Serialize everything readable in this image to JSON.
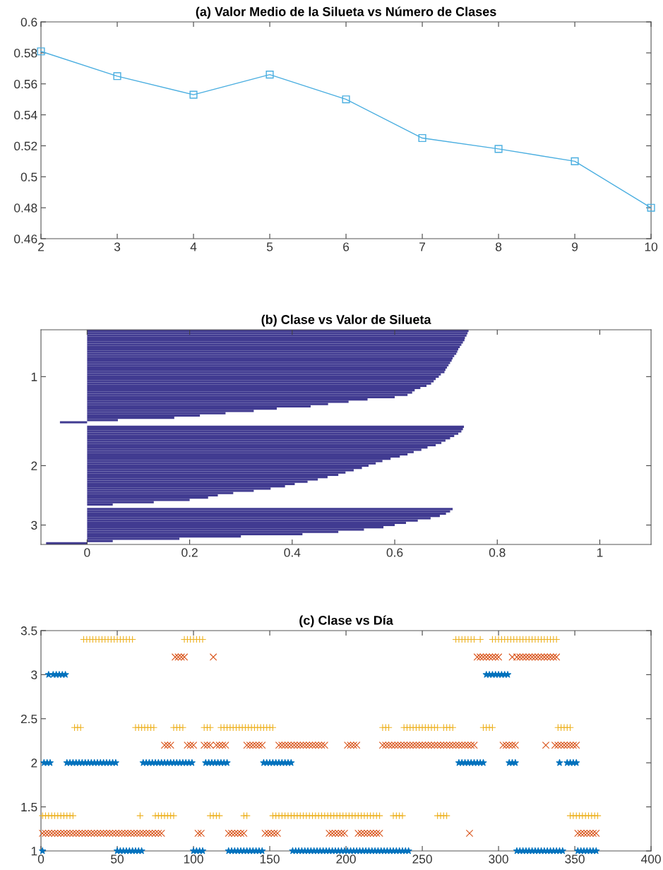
{
  "chart_data": [
    {
      "type": "line",
      "title": "(a) Valor Medio de la Silueta vs Número de Clases",
      "x": [
        2,
        3,
        4,
        5,
        6,
        7,
        8,
        9,
        10
      ],
      "values": [
        0.581,
        0.565,
        0.553,
        0.566,
        0.55,
        0.525,
        0.518,
        0.51,
        0.48
      ],
      "color": "#4aaee0",
      "marker": "square",
      "line_style": "solid",
      "xlim": [
        2,
        10
      ],
      "xticks": [
        2,
        3,
        4,
        5,
        6,
        7,
        8,
        9,
        10
      ],
      "ylim": [
        0.46,
        0.6
      ],
      "yticks": [
        0.46,
        0.48,
        0.5,
        0.52,
        0.54,
        0.56,
        0.58,
        0.6
      ]
    },
    {
      "type": "bar",
      "orientation": "horizontal",
      "title": "(b) Clase vs Valor de Silueta",
      "color": "#413b91",
      "categories": [
        null,
        null,
        null,
        null,
        null,
        null,
        null,
        null,
        null,
        null,
        null,
        null,
        null,
        null,
        null,
        null,
        null,
        null,
        null,
        null,
        "1",
        null,
        null,
        null,
        null,
        null,
        null,
        null,
        null,
        null,
        null,
        null,
        null,
        null,
        null,
        null,
        null,
        null,
        null,
        null,
        null,
        null,
        null,
        null,
        null,
        null,
        null,
        null,
        null,
        null,
        null,
        null,
        null,
        null,
        null,
        null,
        null,
        null,
        null,
        "2",
        null,
        null,
        null,
        null,
        null,
        null,
        null,
        null,
        null,
        null,
        null,
        null,
        null,
        null,
        null,
        null,
        null,
        null,
        null,
        null,
        null,
        null,
        null,
        null,
        null,
        "3",
        null,
        null,
        null,
        null,
        null,
        null,
        null,
        null
      ],
      "values": [
        0.744,
        0.742,
        0.74,
        0.737,
        0.736,
        0.733,
        0.73,
        0.727,
        0.724,
        0.722,
        0.72,
        0.716,
        0.713,
        0.711,
        0.708,
        0.705,
        0.702,
        0.699,
        0.697,
        0.69,
        0.686,
        0.68,
        0.676,
        0.671,
        0.662,
        0.65,
        0.639,
        0.634,
        0.625,
        0.6,
        0.547,
        0.51,
        0.47,
        0.436,
        0.37,
        0.325,
        0.27,
        0.22,
        0.17,
        0.06,
        -0.053,
        null,
        0.735,
        0.733,
        0.73,
        0.724,
        0.716,
        0.708,
        0.699,
        0.691,
        0.68,
        0.664,
        0.652,
        0.637,
        0.625,
        0.61,
        0.592,
        0.576,
        0.563,
        0.549,
        0.536,
        0.52,
        0.504,
        0.49,
        0.469,
        0.45,
        0.43,
        0.405,
        0.386,
        0.358,
        0.325,
        0.285,
        0.255,
        0.236,
        0.2,
        0.13,
        0.05,
        null,
        0.713,
        0.708,
        0.7,
        0.688,
        0.67,
        0.645,
        0.622,
        0.6,
        0.578,
        0.54,
        0.49,
        0.42,
        0.3,
        0.18,
        0.05,
        -0.08
      ],
      "xlim": [
        -0.09,
        1.1
      ],
      "xticks": [
        0,
        0.2,
        0.4,
        0.6,
        0.8,
        1
      ]
    },
    {
      "type": "scatter",
      "title": "(c) Clase vs Día",
      "xlim": [
        0,
        400
      ],
      "xticks": [
        0,
        50,
        100,
        150,
        200,
        250,
        300,
        350,
        400
      ],
      "ylim": [
        1,
        3.5
      ],
      "yticks": [
        1,
        1.5,
        2,
        2.5,
        3,
        3.5
      ],
      "series": [
        {
          "color": "#0072bd",
          "marker": "star",
          "x": [
            1,
            50,
            52,
            54,
            56,
            58,
            60,
            62,
            64,
            66,
            100,
            102,
            104,
            106,
            123,
            125,
            127,
            129,
            131,
            133,
            135,
            137,
            139,
            141,
            143,
            145,
            165,
            167,
            169,
            171,
            173,
            175,
            177,
            179,
            181,
            183,
            185,
            187,
            189,
            191,
            193,
            195,
            197,
            199,
            201,
            203,
            205,
            207,
            209,
            211,
            213,
            215,
            217,
            219,
            221,
            223,
            225,
            227,
            229,
            231,
            233,
            235,
            237,
            239,
            241,
            312,
            314,
            316,
            318,
            320,
            322,
            324,
            326,
            328,
            330,
            332,
            334,
            336,
            338,
            340,
            342,
            352,
            354,
            356,
            358,
            360,
            362,
            364
          ],
          "values": [
            1,
            1,
            1,
            1,
            1,
            1,
            1,
            1,
            1,
            1,
            1,
            1,
            1,
            1,
            1,
            1,
            1,
            1,
            1,
            1,
            1,
            1,
            1,
            1,
            1,
            1,
            1,
            1,
            1,
            1,
            1,
            1,
            1,
            1,
            1,
            1,
            1,
            1,
            1,
            1,
            1,
            1,
            1,
            1,
            1,
            1,
            1,
            1,
            1,
            1,
            1,
            1,
            1,
            1,
            1,
            1,
            1,
            1,
            1,
            1,
            1,
            1,
            1,
            1,
            1,
            1,
            1,
            1,
            1,
            1,
            1,
            1,
            1,
            1,
            1,
            1,
            1,
            1,
            1,
            1,
            1,
            1,
            1,
            1,
            1,
            1,
            1,
            1
          ]
        },
        {
          "color": "#0072bd",
          "marker": "star",
          "x": [
            2,
            4,
            6,
            17,
            19,
            21,
            23,
            25,
            27,
            29,
            31,
            33,
            35,
            37,
            39,
            41,
            43,
            45,
            47,
            49,
            67,
            69,
            71,
            73,
            75,
            77,
            79,
            81,
            83,
            85,
            87,
            89,
            91,
            93,
            95,
            97,
            99,
            108,
            110,
            112,
            114,
            116,
            118,
            120,
            122,
            146,
            148,
            150,
            152,
            154,
            156,
            158,
            160,
            162,
            164,
            274,
            276,
            278,
            280,
            282,
            284,
            286,
            288,
            290,
            307,
            309,
            311,
            340,
            345,
            347,
            349,
            351
          ],
          "values": [
            2,
            2,
            2,
            2,
            2,
            2,
            2,
            2,
            2,
            2,
            2,
            2,
            2,
            2,
            2,
            2,
            2,
            2,
            2,
            2,
            2,
            2,
            2,
            2,
            2,
            2,
            2,
            2,
            2,
            2,
            2,
            2,
            2,
            2,
            2,
            2,
            2,
            2,
            2,
            2,
            2,
            2,
            2,
            2,
            2,
            2,
            2,
            2,
            2,
            2,
            2,
            2,
            2,
            2,
            2,
            2,
            2,
            2,
            2,
            2,
            2,
            2,
            2,
            2,
            2,
            2,
            2,
            2,
            2,
            2,
            2,
            2
          ]
        },
        {
          "color": "#0072bd",
          "marker": "star",
          "x": [
            5,
            8,
            10,
            12,
            14,
            16,
            292,
            294,
            296,
            298,
            300,
            302,
            304,
            306
          ],
          "values": [
            3,
            3,
            3,
            3,
            3,
            3,
            3,
            3,
            3,
            3,
            3,
            3,
            3,
            3
          ]
        },
        {
          "color": "#d95319",
          "marker": "cross",
          "x": [
            1,
            3,
            5,
            7,
            9,
            11,
            13,
            15,
            17,
            19,
            21,
            23,
            25,
            27,
            29,
            31,
            33,
            35,
            37,
            39,
            41,
            43,
            45,
            47,
            49,
            51,
            53,
            55,
            57,
            59,
            61,
            63,
            65,
            67,
            69,
            71,
            73,
            75,
            77,
            79,
            103,
            105,
            123,
            125,
            127,
            129,
            131,
            133,
            147,
            149,
            151,
            153,
            155,
            189,
            191,
            193,
            195,
            197,
            199,
            208,
            210,
            212,
            214,
            216,
            218,
            220,
            222,
            281,
            352,
            354,
            356,
            358,
            360,
            362,
            364
          ],
          "values": [
            1.2,
            1.2,
            1.2,
            1.2,
            1.2,
            1.2,
            1.2,
            1.2,
            1.2,
            1.2,
            1.2,
            1.2,
            1.2,
            1.2,
            1.2,
            1.2,
            1.2,
            1.2,
            1.2,
            1.2,
            1.2,
            1.2,
            1.2,
            1.2,
            1.2,
            1.2,
            1.2,
            1.2,
            1.2,
            1.2,
            1.2,
            1.2,
            1.2,
            1.2,
            1.2,
            1.2,
            1.2,
            1.2,
            1.2,
            1.2,
            1.2,
            1.2,
            1.2,
            1.2,
            1.2,
            1.2,
            1.2,
            1.2,
            1.2,
            1.2,
            1.2,
            1.2,
            1.2,
            1.2,
            1.2,
            1.2,
            1.2,
            1.2,
            1.2,
            1.2,
            1.2,
            1.2,
            1.2,
            1.2,
            1.2,
            1.2,
            1.2,
            1.2,
            1.2,
            1.2,
            1.2,
            1.2,
            1.2,
            1.2,
            1.2
          ]
        },
        {
          "color": "#d95319",
          "marker": "cross",
          "x": [
            81,
            83,
            85,
            96,
            98,
            100,
            107,
            109,
            111,
            115,
            117,
            119,
            121,
            135,
            137,
            139,
            141,
            143,
            145,
            156,
            158,
            160,
            162,
            164,
            166,
            168,
            170,
            172,
            174,
            176,
            178,
            180,
            182,
            184,
            186,
            201,
            203,
            205,
            207,
            224,
            226,
            228,
            230,
            232,
            234,
            236,
            238,
            240,
            242,
            244,
            246,
            248,
            250,
            252,
            254,
            256,
            258,
            260,
            262,
            264,
            266,
            268,
            270,
            272,
            274,
            276,
            278,
            280,
            282,
            284,
            303,
            305,
            307,
            309,
            311,
            331,
            337,
            339,
            341,
            343,
            345,
            347,
            349,
            351
          ],
          "values": [
            2.2,
            2.2,
            2.2,
            2.2,
            2.2,
            2.2,
            2.2,
            2.2,
            2.2,
            2.2,
            2.2,
            2.2,
            2.2,
            2.2,
            2.2,
            2.2,
            2.2,
            2.2,
            2.2,
            2.2,
            2.2,
            2.2,
            2.2,
            2.2,
            2.2,
            2.2,
            2.2,
            2.2,
            2.2,
            2.2,
            2.2,
            2.2,
            2.2,
            2.2,
            2.2,
            2.2,
            2.2,
            2.2,
            2.2,
            2.2,
            2.2,
            2.2,
            2.2,
            2.2,
            2.2,
            2.2,
            2.2,
            2.2,
            2.2,
            2.2,
            2.2,
            2.2,
            2.2,
            2.2,
            2.2,
            2.2,
            2.2,
            2.2,
            2.2,
            2.2,
            2.2,
            2.2,
            2.2,
            2.2,
            2.2,
            2.2,
            2.2,
            2.2,
            2.2,
            2.2,
            2.2,
            2.2,
            2.2,
            2.2,
            2.2,
            2.2,
            2.2,
            2.2,
            2.2,
            2.2,
            2.2,
            2.2,
            2.2,
            2.2
          ]
        },
        {
          "color": "#d95319",
          "marker": "cross",
          "x": [
            88,
            90,
            92,
            94,
            113,
            286,
            288,
            290,
            292,
            294,
            296,
            298,
            300,
            309,
            312,
            314,
            316,
            318,
            320,
            322,
            324,
            326,
            328,
            330,
            332,
            334,
            336,
            338
          ],
          "values": [
            3.2,
            3.2,
            3.2,
            3.2,
            3.2,
            3.2,
            3.2,
            3.2,
            3.2,
            3.2,
            3.2,
            3.2,
            3.2,
            3.2,
            3.2,
            3.2,
            3.2,
            3.2,
            3.2,
            3.2,
            3.2,
            3.2,
            3.2,
            3.2,
            3.2,
            3.2,
            3.2,
            3.2
          ]
        },
        {
          "color": "#edb120",
          "marker": "plus",
          "x": [
            1,
            3,
            5,
            7,
            9,
            11,
            13,
            15,
            17,
            19,
            21,
            65,
            75,
            77,
            79,
            81,
            83,
            85,
            87,
            111,
            113,
            115,
            117,
            133,
            135,
            152,
            154,
            156,
            158,
            160,
            162,
            164,
            166,
            168,
            170,
            172,
            174,
            176,
            178,
            180,
            182,
            184,
            186,
            188,
            190,
            192,
            194,
            196,
            198,
            200,
            202,
            204,
            206,
            208,
            210,
            212,
            214,
            216,
            218,
            220,
            222,
            231,
            233,
            235,
            237,
            260,
            262,
            264,
            266,
            347,
            349,
            351,
            353,
            355,
            357,
            359,
            361,
            363,
            365
          ],
          "values": [
            1.4,
            1.4,
            1.4,
            1.4,
            1.4,
            1.4,
            1.4,
            1.4,
            1.4,
            1.4,
            1.4,
            1.4,
            1.4,
            1.4,
            1.4,
            1.4,
            1.4,
            1.4,
            1.4,
            1.4,
            1.4,
            1.4,
            1.4,
            1.4,
            1.4,
            1.4,
            1.4,
            1.4,
            1.4,
            1.4,
            1.4,
            1.4,
            1.4,
            1.4,
            1.4,
            1.4,
            1.4,
            1.4,
            1.4,
            1.4,
            1.4,
            1.4,
            1.4,
            1.4,
            1.4,
            1.4,
            1.4,
            1.4,
            1.4,
            1.4,
            1.4,
            1.4,
            1.4,
            1.4,
            1.4,
            1.4,
            1.4,
            1.4,
            1.4,
            1.4,
            1.4,
            1.4,
            1.4,
            1.4,
            1.4,
            1.4,
            1.4,
            1.4,
            1.4,
            1.4,
            1.4,
            1.4,
            1.4,
            1.4,
            1.4,
            1.4,
            1.4,
            1.4,
            1.4
          ]
        },
        {
          "color": "#edb120",
          "marker": "plus",
          "x": [
            22,
            24,
            26,
            62,
            64,
            66,
            68,
            70,
            72,
            74,
            87,
            89,
            91,
            93,
            107,
            109,
            111,
            118,
            120,
            122,
            124,
            126,
            128,
            130,
            132,
            134,
            136,
            138,
            140,
            142,
            144,
            146,
            148,
            150,
            152,
            224,
            226,
            228,
            238,
            240,
            242,
            244,
            246,
            248,
            250,
            252,
            254,
            256,
            258,
            260,
            264,
            266,
            268,
            270,
            290,
            292,
            294,
            296,
            339,
            341,
            343,
            345,
            347
          ],
          "values": [
            2.4,
            2.4,
            2.4,
            2.4,
            2.4,
            2.4,
            2.4,
            2.4,
            2.4,
            2.4,
            2.4,
            2.4,
            2.4,
            2.4,
            2.4,
            2.4,
            2.4,
            2.4,
            2.4,
            2.4,
            2.4,
            2.4,
            2.4,
            2.4,
            2.4,
            2.4,
            2.4,
            2.4,
            2.4,
            2.4,
            2.4,
            2.4,
            2.4,
            2.4,
            2.4,
            2.4,
            2.4,
            2.4,
            2.4,
            2.4,
            2.4,
            2.4,
            2.4,
            2.4,
            2.4,
            2.4,
            2.4,
            2.4,
            2.4,
            2.4,
            2.4,
            2.4,
            2.4,
            2.4,
            2.4,
            2.4,
            2.4,
            2.4,
            2.4,
            2.4,
            2.4,
            2.4,
            2.4
          ]
        },
        {
          "color": "#edb120",
          "marker": "plus",
          "x": [
            28,
            30,
            32,
            34,
            36,
            38,
            40,
            42,
            44,
            46,
            48,
            50,
            52,
            54,
            56,
            58,
            60,
            94,
            96,
            98,
            100,
            102,
            104,
            106,
            272,
            274,
            276,
            278,
            280,
            282,
            284,
            288,
            296,
            298,
            300,
            302,
            304,
            306,
            308,
            310,
            312,
            314,
            316,
            318,
            320,
            322,
            324,
            326,
            328,
            330,
            332,
            334,
            336,
            338
          ],
          "values": [
            3.4,
            3.4,
            3.4,
            3.4,
            3.4,
            3.4,
            3.4,
            3.4,
            3.4,
            3.4,
            3.4,
            3.4,
            3.4,
            3.4,
            3.4,
            3.4,
            3.4,
            3.4,
            3.4,
            3.4,
            3.4,
            3.4,
            3.4,
            3.4,
            3.4,
            3.4,
            3.4,
            3.4,
            3.4,
            3.4,
            3.4,
            3.4,
            3.4,
            3.4,
            3.4,
            3.4,
            3.4,
            3.4,
            3.4,
            3.4,
            3.4,
            3.4,
            3.4,
            3.4,
            3.4,
            3.4,
            3.4,
            3.4,
            3.4,
            3.4,
            3.4,
            3.4,
            3.4,
            3.4
          ]
        }
      ]
    }
  ]
}
